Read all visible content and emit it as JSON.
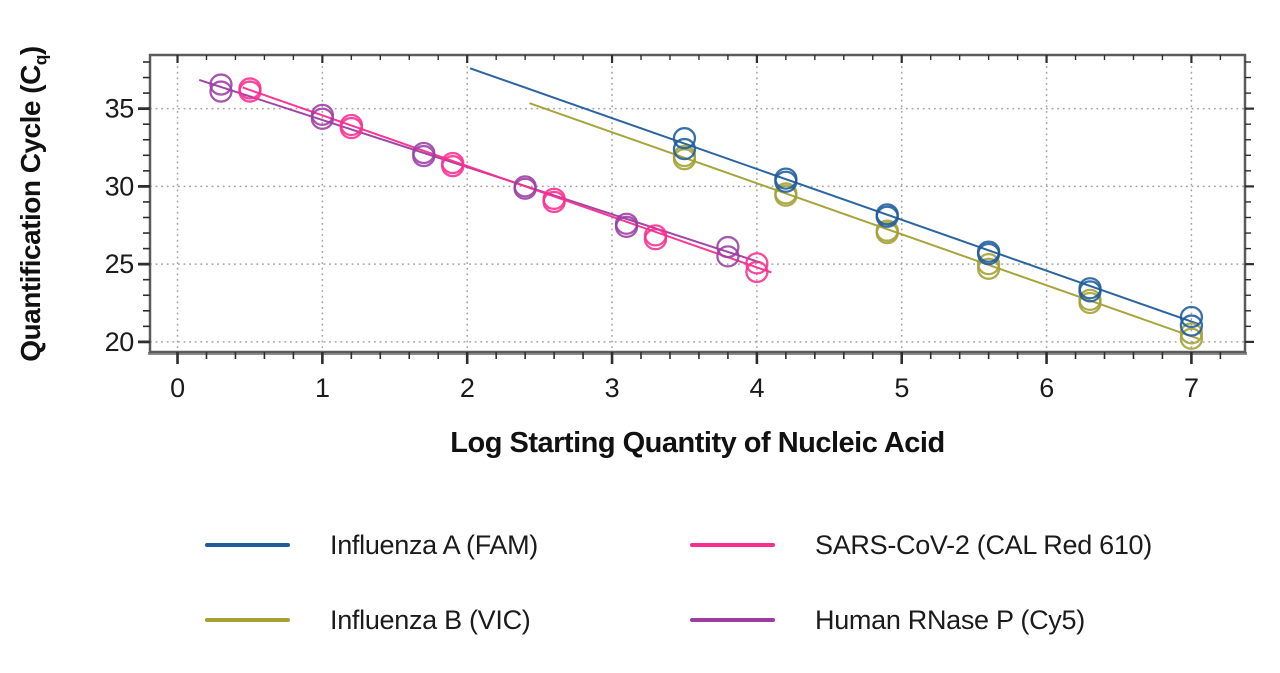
{
  "chart_data": {
    "type": "scatter",
    "title": "",
    "xlabel": "Log Starting Quantity of Nucleic Acid",
    "ylabel": {
      "prefix": "Quantification Cycle (C",
      "sub": "q",
      "suffix": ")"
    },
    "x_ticks": [
      0,
      1,
      2,
      3,
      4,
      5,
      6,
      7
    ],
    "y_ticks": [
      20,
      25,
      30,
      35
    ],
    "x_minor_step": 0.2,
    "y_minor_step": 1,
    "xlim": [
      -0.19,
      7.37
    ],
    "ylim": [
      19.35,
      38.45
    ],
    "grid": "dotted gray lines at integer x and at labeled y values",
    "grid_color": "#a3a3a3",
    "frame_color": "#5c5c5c",
    "tick_color": "#2e2e2e",
    "text_color": "#1b1b1b",
    "legend_position": "below-chart, 2 columns",
    "legend_order": [
      0,
      2,
      1,
      3
    ],
    "marker": "open-circle duplicates per dilution",
    "series": [
      {
        "name": "Influenza A (FAM)",
        "color": "#1f5c9c",
        "points": [
          [
            3.5,
            33.1
          ],
          [
            3.5,
            32.4
          ],
          [
            4.2,
            30.5
          ],
          [
            4.2,
            30.3
          ],
          [
            4.9,
            28.2
          ],
          [
            4.9,
            28.05
          ],
          [
            5.6,
            25.8
          ],
          [
            5.6,
            25.65
          ],
          [
            6.3,
            23.45
          ],
          [
            6.3,
            23.25
          ],
          [
            7.0,
            21.6
          ],
          [
            7.0,
            21.05
          ]
        ],
        "trendline": {
          "intercept": 44.2,
          "slope": -3.27,
          "x_range": [
            2.02,
            7.05
          ]
        }
      },
      {
        "name": "Influenza B (VIC)",
        "color": "#a4a033",
        "points": [
          [
            3.5,
            31.95
          ],
          [
            3.5,
            31.75
          ],
          [
            4.2,
            29.55
          ],
          [
            4.2,
            29.4
          ],
          [
            4.9,
            27.15
          ],
          [
            4.9,
            27.0
          ],
          [
            5.6,
            25.0
          ],
          [
            5.6,
            24.7
          ],
          [
            6.3,
            22.7
          ],
          [
            6.3,
            22.5
          ],
          [
            7.0,
            20.55
          ],
          [
            7.0,
            20.2
          ]
        ],
        "trendline": {
          "intercept": 43.32,
          "slope": -3.28,
          "x_range": [
            2.43,
            7.05
          ]
        }
      },
      {
        "name": "SARS-CoV-2 (CAL Red 610)",
        "color": "#fa2e8e",
        "points": [
          [
            0.5,
            36.3
          ],
          [
            0.5,
            36.1
          ],
          [
            1.2,
            33.95
          ],
          [
            1.2,
            33.75
          ],
          [
            1.9,
            31.5
          ],
          [
            1.9,
            31.3
          ],
          [
            2.6,
            29.2
          ],
          [
            2.6,
            29.0
          ],
          [
            3.3,
            26.85
          ],
          [
            3.3,
            26.6
          ],
          [
            4.0,
            25.05
          ],
          [
            4.0,
            24.5
          ]
        ],
        "trendline": {
          "intercept": 37.83,
          "slope": -3.26,
          "x_range": [
            0.45,
            4.1
          ]
        }
      },
      {
        "name": "Human RNase P (Cy5)",
        "color": "#9c3da4",
        "points": [
          [
            0.3,
            36.55
          ],
          [
            0.3,
            36.1
          ],
          [
            1.0,
            34.6
          ],
          [
            1.0,
            34.35
          ],
          [
            1.7,
            32.15
          ],
          [
            1.7,
            31.95
          ],
          [
            2.4,
            30.0
          ],
          [
            2.4,
            29.85
          ],
          [
            3.1,
            27.6
          ],
          [
            3.1,
            27.4
          ],
          [
            3.8,
            26.1
          ],
          [
            3.8,
            25.5
          ]
        ],
        "trendline": {
          "intercept": 37.3,
          "slope": -3.03,
          "x_range": [
            0.15,
            4.02
          ]
        }
      }
    ]
  }
}
